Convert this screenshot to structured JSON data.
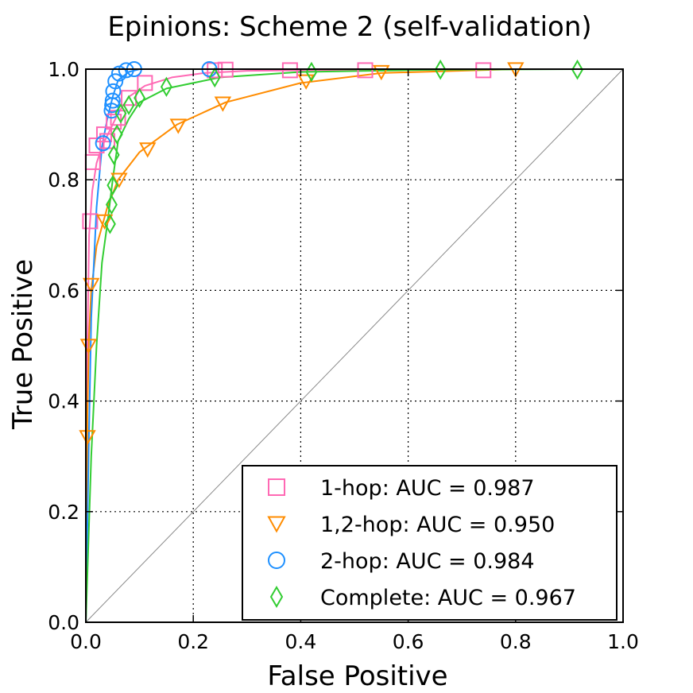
{
  "chart_data": {
    "type": "line",
    "title": "Epinions: Scheme 2 (self-validation)",
    "xlabel": "False Positive",
    "ylabel": "True Positive",
    "xlim": [
      0.0,
      1.0
    ],
    "ylim": [
      0.0,
      1.0
    ],
    "x_ticks": [
      "0.0",
      "0.2",
      "0.4",
      "0.6",
      "0.8",
      "1.0"
    ],
    "y_ticks": [
      "0.0",
      "0.2",
      "0.4",
      "0.6",
      "0.8",
      "1.0"
    ],
    "grid": true,
    "legend_position": "lower-right",
    "diagonal_reference": true,
    "series": [
      {
        "name": "1-hop: AUC = 0.987",
        "color": "#ff69b4",
        "marker": "square",
        "curve": [
          [
            0,
            0
          ],
          [
            0.003,
            0.5
          ],
          [
            0.006,
            0.7
          ],
          [
            0.012,
            0.78
          ],
          [
            0.02,
            0.83
          ],
          [
            0.03,
            0.86
          ],
          [
            0.045,
            0.89
          ],
          [
            0.06,
            0.92
          ],
          [
            0.08,
            0.95
          ],
          [
            0.11,
            0.97
          ],
          [
            0.16,
            0.985
          ],
          [
            0.22,
            0.993
          ],
          [
            0.3,
            0.997
          ],
          [
            0.5,
            0.999
          ],
          [
            0.8,
            1.0
          ],
          [
            1.0,
            1.0
          ]
        ],
        "points": [
          [
            0.008,
            0.725
          ],
          [
            0.013,
            0.832
          ],
          [
            0.02,
            0.862
          ],
          [
            0.034,
            0.882
          ],
          [
            0.04,
            0.87
          ],
          [
            0.052,
            0.905
          ],
          [
            0.06,
            0.912
          ],
          [
            0.08,
            0.948
          ],
          [
            0.11,
            0.975
          ],
          [
            0.24,
            0.998
          ],
          [
            0.26,
            0.999
          ],
          [
            0.38,
            0.998
          ],
          [
            0.52,
            0.998
          ],
          [
            0.74,
            0.998
          ]
        ]
      },
      {
        "name": "1,2-hop: AUC = 0.950",
        "color": "#ff8c00",
        "marker": "triangle-down",
        "curve": [
          [
            0,
            0
          ],
          [
            0.003,
            0.38
          ],
          [
            0.006,
            0.52
          ],
          [
            0.01,
            0.6
          ],
          [
            0.02,
            0.68
          ],
          [
            0.04,
            0.75
          ],
          [
            0.06,
            0.8
          ],
          [
            0.1,
            0.85
          ],
          [
            0.17,
            0.9
          ],
          [
            0.26,
            0.94
          ],
          [
            0.4,
            0.975
          ],
          [
            0.55,
            0.993
          ],
          [
            0.8,
            1.0
          ],
          [
            1.0,
            1.0
          ]
        ],
        "points": [
          [
            0.003,
            0.335
          ],
          [
            0.005,
            0.5
          ],
          [
            0.01,
            0.61
          ],
          [
            0.035,
            0.725
          ],
          [
            0.062,
            0.8
          ],
          [
            0.115,
            0.855
          ],
          [
            0.172,
            0.898
          ],
          [
            0.255,
            0.938
          ],
          [
            0.41,
            0.978
          ],
          [
            0.55,
            0.995
          ],
          [
            0.8,
            1.0
          ]
        ]
      },
      {
        "name": "2-hop: AUC = 0.984",
        "color": "#1e90ff",
        "marker": "circle",
        "curve": [
          [
            0,
            0
          ],
          [
            0.005,
            0.3
          ],
          [
            0.01,
            0.55
          ],
          [
            0.02,
            0.75
          ],
          [
            0.03,
            0.86
          ],
          [
            0.04,
            0.91
          ],
          [
            0.05,
            0.95
          ],
          [
            0.06,
            0.98
          ],
          [
            0.08,
            0.995
          ],
          [
            0.1,
            1.0
          ],
          [
            1.0,
            1.0
          ]
        ],
        "points": [
          [
            0.032,
            0.866
          ],
          [
            0.048,
            0.925
          ],
          [
            0.049,
            0.935
          ],
          [
            0.05,
            0.943
          ],
          [
            0.051,
            0.96
          ],
          [
            0.055,
            0.978
          ],
          [
            0.062,
            0.992
          ],
          [
            0.075,
            0.998
          ],
          [
            0.09,
            1.0
          ],
          [
            0.23,
            1.0
          ]
        ]
      },
      {
        "name": "Complete: AUC = 0.967",
        "color": "#32cd32",
        "marker": "diamond",
        "curve": [
          [
            0,
            0
          ],
          [
            0.01,
            0.3
          ],
          [
            0.02,
            0.5
          ],
          [
            0.03,
            0.65
          ],
          [
            0.04,
            0.72
          ],
          [
            0.05,
            0.8
          ],
          [
            0.06,
            0.87
          ],
          [
            0.08,
            0.91
          ],
          [
            0.1,
            0.94
          ],
          [
            0.15,
            0.965
          ],
          [
            0.25,
            0.985
          ],
          [
            0.4,
            0.995
          ],
          [
            0.66,
            0.999
          ],
          [
            0.92,
            1.0
          ],
          [
            1.0,
            1.0
          ]
        ],
        "points": [
          [
            0.045,
            0.72
          ],
          [
            0.048,
            0.755
          ],
          [
            0.05,
            0.79
          ],
          [
            0.052,
            0.845
          ],
          [
            0.058,
            0.882
          ],
          [
            0.065,
            0.92
          ],
          [
            0.08,
            0.935
          ],
          [
            0.1,
            0.948
          ],
          [
            0.15,
            0.968
          ],
          [
            0.24,
            0.985
          ],
          [
            0.42,
            0.995
          ],
          [
            0.66,
            0.999
          ],
          [
            0.915,
            0.999
          ]
        ]
      }
    ]
  }
}
